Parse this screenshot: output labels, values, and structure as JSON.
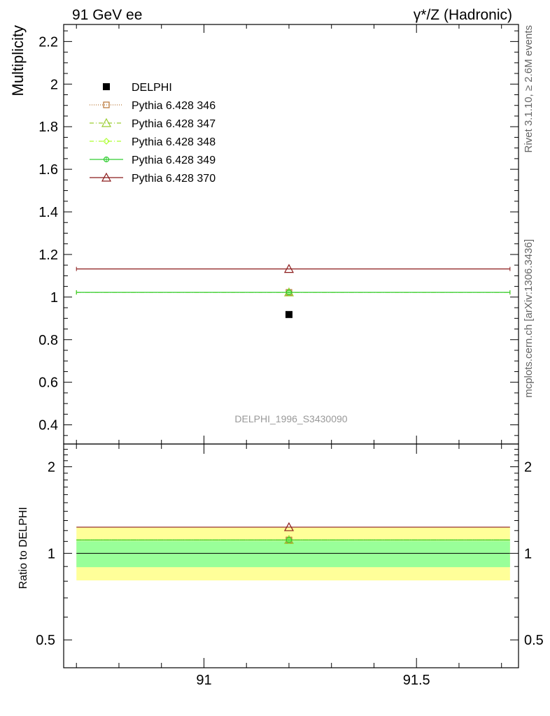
{
  "header": {
    "left_title": "91 GeV ee",
    "right_title": "γ*/Z (Hadronic)"
  },
  "side_labels": {
    "rivet": "Rivet 3.1.10, ≥ 2.6M events",
    "mcplots": "mcplots.cern.ch [arXiv:1306.3436]"
  },
  "analysis_tag": "DELPHI_1996_S3430090",
  "colors": {
    "data": "#000000",
    "p346": "#b87333",
    "p347": "#9acd32",
    "p348": "#adff2f",
    "p349": "#32cd32",
    "p370": "#8b1a1a",
    "band_outer": "#ffff99",
    "band_inner": "#99ff99"
  },
  "chart_data": [
    {
      "type": "scatter",
      "panel": "main",
      "ylabel": "Multiplicity",
      "xlim": [
        90.67,
        91.74
      ],
      "ylim": [
        0.31,
        2.28
      ],
      "yticks": [
        0.4,
        0.6,
        0.8,
        1,
        1.2,
        1.4,
        1.6,
        1.8,
        2,
        2.2
      ],
      "ytick_labels": [
        "0.4",
        "0.6",
        "0.8",
        "1",
        "1.2",
        "1.4",
        "1.6",
        "1.8",
        "2",
        "2.2"
      ],
      "legend_position": "top-left",
      "series": [
        {
          "name": "DELPHI",
          "key": "data",
          "marker": "square-filled",
          "x": 91.2,
          "y": 0.918,
          "xerr": [
            91.2,
            91.2
          ]
        },
        {
          "name": "Pythia 6.428 346",
          "key": "p346",
          "marker": "square-open",
          "line": "dotted",
          "x": 91.2,
          "y": 1.022,
          "xerr": [
            90.7,
            91.72
          ]
        },
        {
          "name": "Pythia 6.428 347",
          "key": "p347",
          "marker": "triangle-open",
          "line": "dashdot",
          "x": 91.2,
          "y": 1.022,
          "xerr": [
            90.7,
            91.72
          ]
        },
        {
          "name": "Pythia 6.428 348",
          "key": "p348",
          "marker": "diamond-open",
          "line": "dashdot",
          "x": 91.2,
          "y": 1.022,
          "xerr": [
            90.7,
            91.72
          ]
        },
        {
          "name": "Pythia 6.428 349",
          "key": "p349",
          "marker": "circle-plus",
          "line": "solid",
          "x": 91.2,
          "y": 1.022,
          "xerr": [
            90.7,
            91.72
          ]
        },
        {
          "name": "Pythia 6.428 370",
          "key": "p370",
          "marker": "triangle-open",
          "line": "solid",
          "x": 91.2,
          "y": 1.132,
          "xerr": [
            90.7,
            91.72
          ]
        }
      ]
    },
    {
      "type": "scatter",
      "panel": "ratio",
      "ylabel": "Ratio to DELPHI",
      "xlim": [
        90.67,
        91.74
      ],
      "ylim": [
        0.4,
        2.4
      ],
      "xticks": [
        91,
        91.5
      ],
      "xtick_labels": [
        "91",
        "91.5"
      ],
      "yticks": [
        0.5,
        1,
        2
      ],
      "ytick_labels": [
        "0.5",
        "1",
        "2"
      ],
      "bands": [
        {
          "key": "band_outer",
          "x": [
            90.7,
            91.72
          ],
          "y": [
            0.805,
            1.235
          ]
        },
        {
          "key": "band_inner",
          "x": [
            90.7,
            91.72
          ],
          "y": [
            0.895,
            1.105
          ]
        }
      ],
      "series": [
        {
          "name": "Pythia 6.428 346",
          "key": "p346",
          "marker": "square-open",
          "line": "dotted",
          "x": 91.2,
          "y": 1.113
        },
        {
          "name": "Pythia 6.428 347",
          "key": "p347",
          "marker": "triangle-open",
          "line": "dashdot",
          "x": 91.2,
          "y": 1.113
        },
        {
          "name": "Pythia 6.428 348",
          "key": "p348",
          "marker": "diamond-open",
          "line": "dashdot",
          "x": 91.2,
          "y": 1.113
        },
        {
          "name": "Pythia 6.428 349",
          "key": "p349",
          "marker": "circle-plus",
          "line": "solid",
          "x": 91.2,
          "y": 1.113
        },
        {
          "name": "Pythia 6.428 370",
          "key": "p370",
          "marker": "triangle-open",
          "line": "solid",
          "x": 91.2,
          "y": 1.233
        }
      ]
    }
  ]
}
